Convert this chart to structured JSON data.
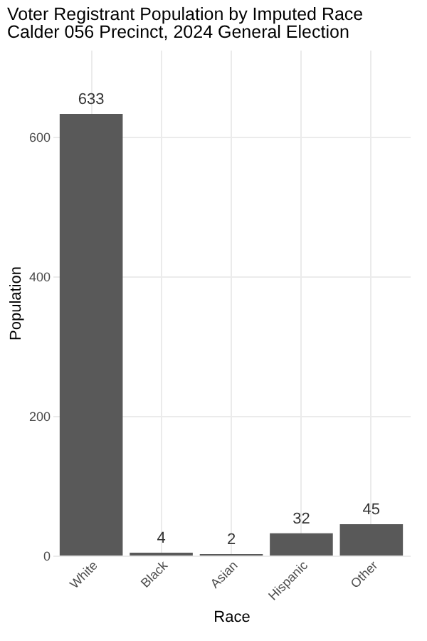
{
  "chart_data": {
    "type": "bar",
    "title": "Voter Registrant Population by Imputed Race",
    "subtitle": "Calder 056 Precinct,  2024 General Election",
    "xlabel": "Race",
    "ylabel": "Population",
    "categories": [
      "White",
      "Black",
      "Asian",
      "Hispanic",
      "Other"
    ],
    "values": [
      633,
      4,
      2,
      32,
      45
    ],
    "color": "#595959",
    "ylim": [
      0,
      725
    ],
    "yticks": [
      0,
      200,
      400,
      600
    ],
    "grid": true,
    "data_labels": true
  }
}
